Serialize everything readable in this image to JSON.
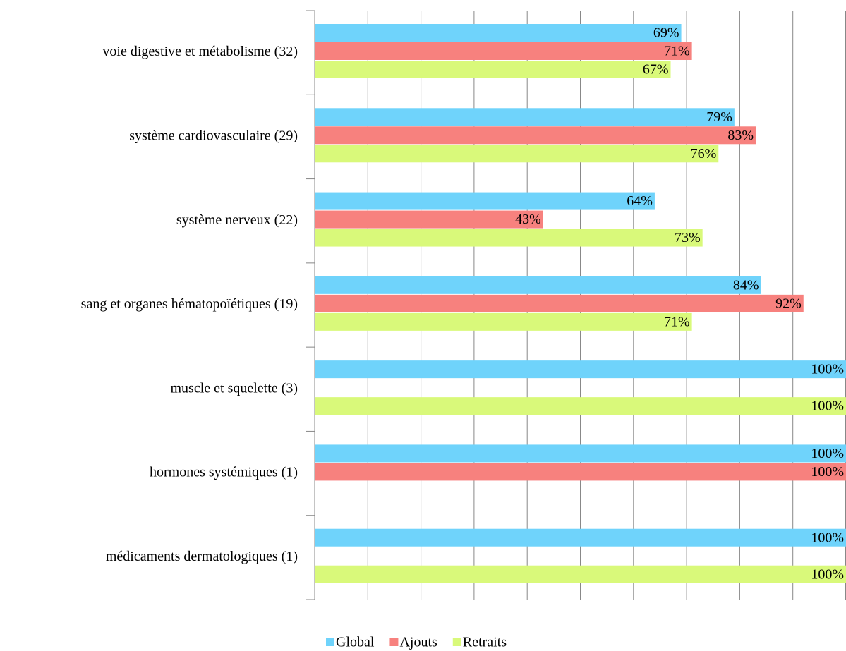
{
  "chart_data": {
    "type": "hbar",
    "categories": [
      "voie digestive et métabolisme (32)",
      "système cardiovasculaire (29)",
      "système nerveux (22)",
      "sang et organes hématopoïétiques (19)",
      "muscle et squelette (3)",
      "hormones systémiques (1)",
      "médicaments dermatologiques (1)"
    ],
    "series": [
      {
        "name": "Global",
        "color": "#6fd3fb",
        "values": [
          69,
          79,
          64,
          84,
          100,
          100,
          100
        ],
        "value_labels": [
          "69%",
          "79%",
          "64%",
          "84%",
          "100%",
          "100%",
          "100%"
        ]
      },
      {
        "name": "Ajouts",
        "color": "#f7817e",
        "values": [
          71,
          83,
          43,
          92,
          null,
          100,
          null
        ],
        "value_labels": [
          "71%",
          "83%",
          "43%",
          "92%",
          null,
          "100%",
          null
        ]
      },
      {
        "name": "Retraits",
        "color": "#d9f97a",
        "values": [
          67,
          76,
          73,
          71,
          100,
          null,
          100
        ],
        "value_labels": [
          "67%",
          "76%",
          "73%",
          "71%",
          "100%",
          null,
          "100%"
        ]
      }
    ],
    "xlim": [
      0,
      100
    ],
    "xticks": [
      0,
      10,
      20,
      30,
      40,
      50,
      60,
      70,
      80,
      90,
      100
    ],
    "grid": true,
    "legend": "bottom"
  }
}
